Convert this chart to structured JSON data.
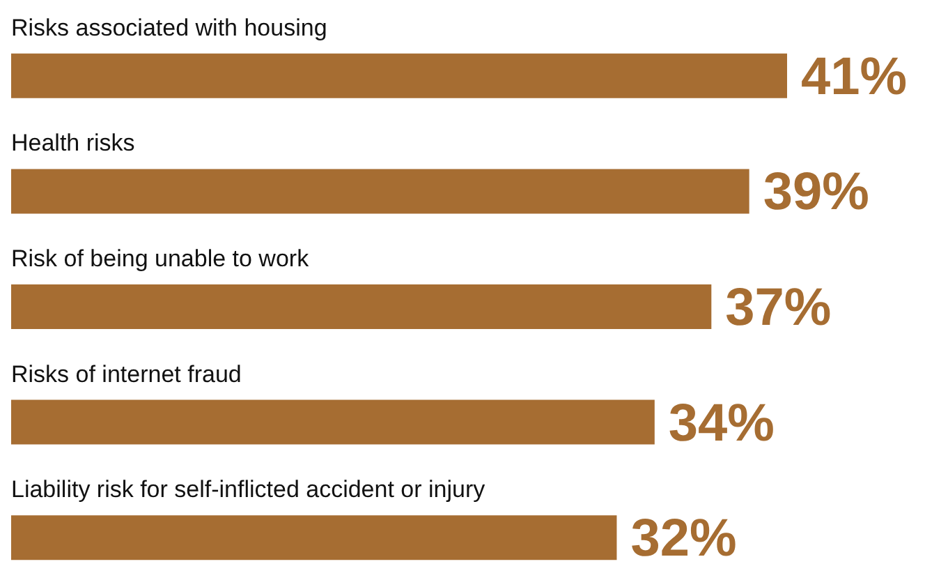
{
  "chart_data": {
    "type": "bar",
    "orientation": "horizontal",
    "categories": [
      "Risks associated with housing",
      "Health risks",
      "Risk of being unable to work",
      "Risks of internet fraud",
      "Liability risk for self-inflicted accident or injury"
    ],
    "values": [
      41,
      39,
      37,
      34,
      32
    ],
    "value_labels": [
      "41%",
      "39%",
      "37%",
      "34%",
      "32%"
    ],
    "color": "#a66d32"
  }
}
